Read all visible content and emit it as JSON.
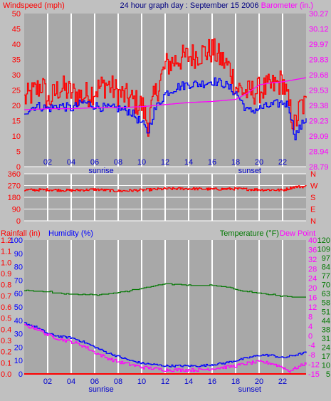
{
  "colors": {
    "background": "#c0c0c0",
    "plot_bg": "#a8a8a8",
    "grid": "#ffffff",
    "axis_text": "#000000",
    "windspeed": "#ff0000",
    "barometer": "#ff00ff",
    "average_wind": "#0000ff",
    "direction": "#ff0000",
    "humidity": "#0000ff",
    "temperature": "#007700",
    "dew_point": "#ff00ff",
    "rainfall": "#ff0000",
    "title": "#000080",
    "sun_label": "#0000cc"
  },
  "chart_data": [
    {
      "type": "line",
      "title": "24 hour graph day : September 15 2006",
      "left_axis_label": "Windspeed (mph)",
      "right_axis_label": "Barometer (in.)",
      "x_tick_labels": [
        "02",
        "04",
        "06",
        "08",
        "10",
        "12",
        "14",
        "16",
        "18",
        "20",
        "22"
      ],
      "x_tick_hours": [
        2,
        4,
        6,
        8,
        10,
        12,
        14,
        16,
        18,
        20,
        22
      ],
      "xlim": [
        0,
        24
      ],
      "sun_labels": [
        {
          "text": "sunrise",
          "hour": 6.55
        },
        {
          "text": "sunset",
          "hour": 19.2
        }
      ],
      "ylim_left": [
        0,
        50
      ],
      "left_ticks": [
        "0",
        "5",
        "10",
        "15",
        "20",
        "25",
        "30",
        "35",
        "40",
        "45",
        "50"
      ],
      "ylim_right": [
        28.79,
        30.27
      ],
      "right_ticks": [
        "28.79",
        "28.94",
        "29.09",
        "29.23",
        "29.38",
        "29.53",
        "29.68",
        "29.83",
        "29.97",
        "30.12",
        "30.27"
      ],
      "series": [
        {
          "name": "Windspeed",
          "axis": "left",
          "style": "noisy",
          "x": [
            0,
            1,
            1.5,
            2,
            3,
            4,
            5,
            6,
            7,
            8,
            9,
            10,
            10.5,
            11,
            12,
            13,
            14,
            15,
            16,
            17,
            17.5,
            18,
            19,
            20,
            21,
            22,
            22.5,
            23,
            23.5,
            24
          ],
          "y": [
            22,
            25,
            27,
            21,
            26,
            24,
            23,
            25,
            27,
            24,
            22,
            20,
            14,
            22,
            33,
            35,
            36,
            37,
            38,
            34,
            32,
            26,
            24,
            25,
            26,
            28,
            20,
            13,
            20,
            20
          ],
          "noise": 4.5
        },
        {
          "name": "Average wind",
          "axis": "left",
          "style": "noisy",
          "x": [
            0,
            1,
            2,
            3,
            4,
            5,
            6,
            7,
            8,
            9,
            10,
            10.5,
            11,
            12,
            13,
            14,
            15,
            16,
            17,
            18,
            19,
            20,
            21,
            22,
            22.5,
            23,
            24
          ],
          "y": [
            18,
            20,
            19,
            20,
            19,
            21,
            20,
            19,
            19,
            18,
            14,
            11,
            18,
            24,
            26,
            27,
            27,
            28,
            27,
            24,
            18,
            19,
            20,
            21,
            20,
            10,
            16
          ],
          "noise": 1.5
        },
        {
          "name": "Barometer",
          "axis": "right",
          "style": "smooth",
          "x": [
            0,
            2,
            4,
            6,
            8,
            10,
            12,
            14,
            16,
            18,
            19,
            20,
            21,
            22,
            23,
            24
          ],
          "y": [
            29.34,
            29.35,
            29.35,
            29.36,
            29.36,
            29.37,
            29.39,
            29.41,
            29.42,
            29.44,
            29.5,
            29.58,
            29.6,
            29.61,
            29.63,
            29.65
          ]
        }
      ]
    },
    {
      "type": "line",
      "title": "",
      "x_tick_hours": [
        2,
        4,
        6,
        8,
        10,
        12,
        14,
        16,
        18,
        20,
        22
      ],
      "xlim": [
        0,
        24
      ],
      "ylim_left": [
        0,
        360
      ],
      "left_ticks": [
        "0",
        "90",
        "180",
        "270",
        "360"
      ],
      "right_ticks": [
        "N",
        "W",
        "S",
        "E",
        "N"
      ],
      "series": [
        {
          "name": "Wind direction",
          "axis": "left",
          "style": "noisy",
          "x": [
            0,
            2,
            4,
            6,
            8,
            10,
            12,
            14,
            16,
            18,
            20,
            22,
            23,
            24
          ],
          "y": [
            235,
            238,
            232,
            240,
            228,
            235,
            245,
            246,
            242,
            245,
            238,
            235,
            260,
            262
          ],
          "noise": 10
        }
      ]
    },
    {
      "type": "line",
      "title": "",
      "left_axis_label_1": "Rainfall (in)",
      "left_axis_label_2": "Humidity (%)",
      "right_axis_label_1": "Temperature (°F)",
      "right_axis_label_2": "Dew Point",
      "x_tick_labels": [
        "02",
        "04",
        "06",
        "08",
        "10",
        "12",
        "14",
        "16",
        "18",
        "20",
        "22"
      ],
      "x_tick_hours": [
        2,
        4,
        6,
        8,
        10,
        12,
        14,
        16,
        18,
        20,
        22
      ],
      "xlim": [
        0,
        24
      ],
      "sun_labels": [
        {
          "text": "sunrise",
          "hour": 6.55
        },
        {
          "text": "sunset",
          "hour": 19.2
        }
      ],
      "ylim_left": [
        0,
        100
      ],
      "rain_ticks": [
        "0.0",
        "0.1",
        "0.2",
        "0.3",
        "0.4",
        "0.5",
        "0.6",
        "0.7",
        "0.8",
        "0.9",
        "1.0",
        "1.1",
        "1.2"
      ],
      "humidity_ticks": [
        "0",
        "10",
        "20",
        "30",
        "40",
        "50",
        "60",
        "70",
        "80",
        "90",
        "100"
      ],
      "temp_c_ticks": [
        "-15",
        "-12",
        "-8",
        "-4",
        "0",
        "4",
        "8",
        "12",
        "16",
        "20",
        "24",
        "28",
        "32",
        "36",
        "40"
      ],
      "temp_f_ticks": [
        "5",
        "10",
        "17",
        "24",
        "31",
        "38",
        "44",
        "51",
        "58",
        "63",
        "70",
        "77",
        "84",
        "97",
        "109",
        "120"
      ],
      "temp_ylim_f": [
        5,
        120
      ],
      "series": [
        {
          "name": "Temperature",
          "axis": "temp",
          "style": "step",
          "x": [
            0,
            1,
            2,
            3,
            4,
            5,
            6,
            7,
            8,
            9,
            10,
            11,
            12,
            13,
            14,
            15,
            16,
            17,
            18,
            19,
            20,
            21,
            22,
            23,
            24
          ],
          "y": [
            77,
            76,
            75.5,
            74.5,
            73.5,
            73,
            73,
            73.5,
            75,
            76.5,
            78.5,
            80.5,
            82.5,
            82,
            81,
            81,
            81,
            80,
            77.5,
            75.5,
            74.5,
            73,
            72,
            71,
            71
          ]
        },
        {
          "name": "Humidity",
          "axis": "left",
          "style": "noisy",
          "x": [
            0,
            1,
            2,
            3,
            4,
            5,
            6,
            7,
            8,
            9,
            10,
            11,
            12,
            13,
            14,
            15,
            16,
            17,
            18,
            19,
            20,
            21,
            22,
            23,
            24
          ],
          "y": [
            38,
            35,
            30,
            28,
            27,
            24,
            20,
            16,
            13,
            10,
            8,
            7,
            6,
            6,
            6,
            6,
            7,
            8,
            10,
            12,
            14,
            14,
            12,
            14,
            16
          ],
          "noise": 0.8
        },
        {
          "name": "Dew Point",
          "axis": "left",
          "style": "noisy",
          "x": [
            0,
            1,
            2,
            3,
            4,
            5,
            6,
            7,
            8,
            9,
            10,
            11,
            12,
            13,
            14,
            15,
            16,
            17,
            18,
            19,
            20,
            21,
            22,
            22.5,
            23,
            24
          ],
          "y": [
            36,
            34,
            29,
            26,
            24,
            21,
            16,
            12,
            9,
            7,
            5,
            4,
            3,
            3,
            3,
            3,
            4,
            5,
            6,
            8,
            9,
            8,
            5,
            2,
            4,
            8
          ],
          "noise": 1.2
        },
        {
          "name": "Rainfall",
          "axis": "left",
          "style": "flat",
          "x": [
            0,
            24
          ],
          "y": [
            0,
            0
          ]
        }
      ]
    }
  ]
}
